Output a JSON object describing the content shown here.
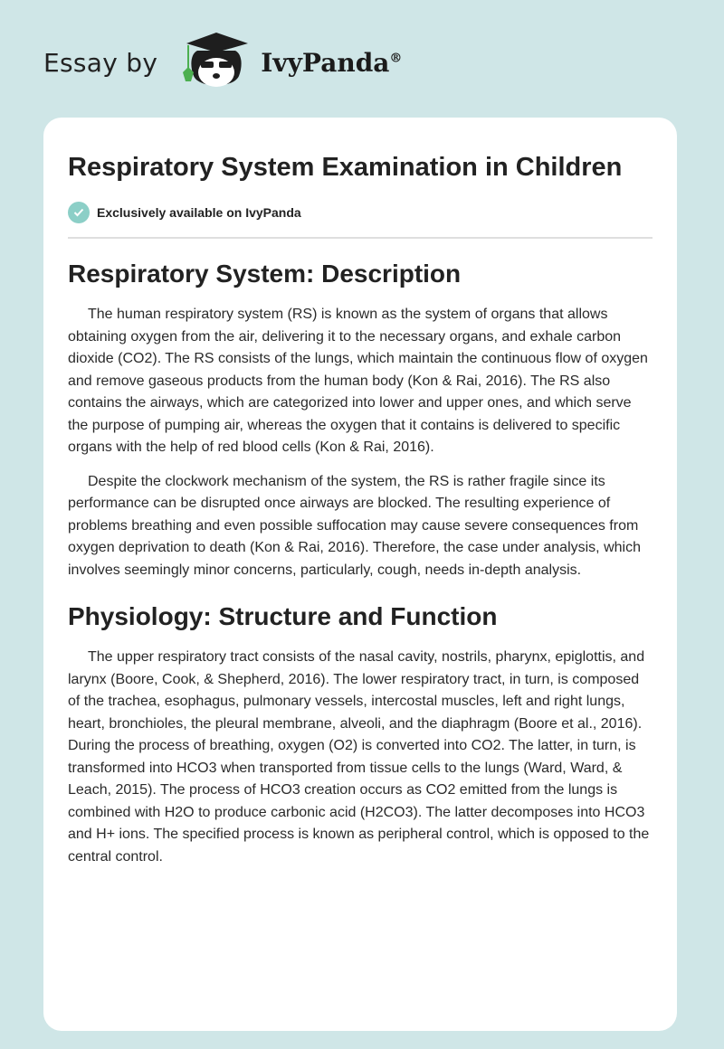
{
  "header": {
    "essay_by": "Essay by",
    "brand": "IvyPanda",
    "registered": "®"
  },
  "article": {
    "title": "Respiratory System Examination in Children",
    "badge": "Exclusively available on IvyPanda",
    "sections": [
      {
        "heading": "Respiratory System: Description",
        "paragraphs": [
          "The human respiratory system (RS) is known as the system of organs that allows obtaining oxygen from the air, delivering it to the necessary organs, and exhale carbon dioxide (CO2). The RS consists of the lungs, which maintain the continuous flow of oxygen and remove gaseous products from the human body (Kon & Rai, 2016). The RS also contains the airways, which are categorized into lower and upper ones, and which serve the purpose of pumping air, whereas the oxygen that it contains is delivered to specific organs with the help of red blood cells (Kon & Rai, 2016).",
          "Despite the clockwork mechanism of the system, the RS is rather fragile since its performance can be disrupted once airways are blocked. The resulting experience of problems breathing and even possible suffocation may cause severe consequences from oxygen deprivation to death (Kon & Rai, 2016). Therefore, the case under analysis, which involves seemingly minor concerns, particularly, cough, needs in-depth analysis."
        ]
      },
      {
        "heading": "Physiology: Structure and Function",
        "paragraphs": [
          "The upper respiratory tract consists of the nasal cavity, nostrils, pharynx, epiglottis, and larynx (Boore, Cook, & Shepherd, 2016). The lower respiratory tract, in turn, is composed of the trachea, esophagus, pulmonary vessels, intercostal muscles, left and right lungs, heart, bronchioles, the pleural membrane, alveoli, and the diaphragm (Boore et al., 2016). During the process of breathing, oxygen (O2) is converted into CO2. The latter, in turn, is transformed into HCO3 when transported from tissue cells to the lungs (Ward, Ward, & Leach, 2015). The process of HCO3 creation occurs as CO2 emitted from the lungs is combined with H2O to produce carbonic acid (H2CO3). The latter decomposes into HCO3 and H+ ions. The specified process is known as peripheral control, which is opposed to the central control."
        ]
      }
    ]
  }
}
